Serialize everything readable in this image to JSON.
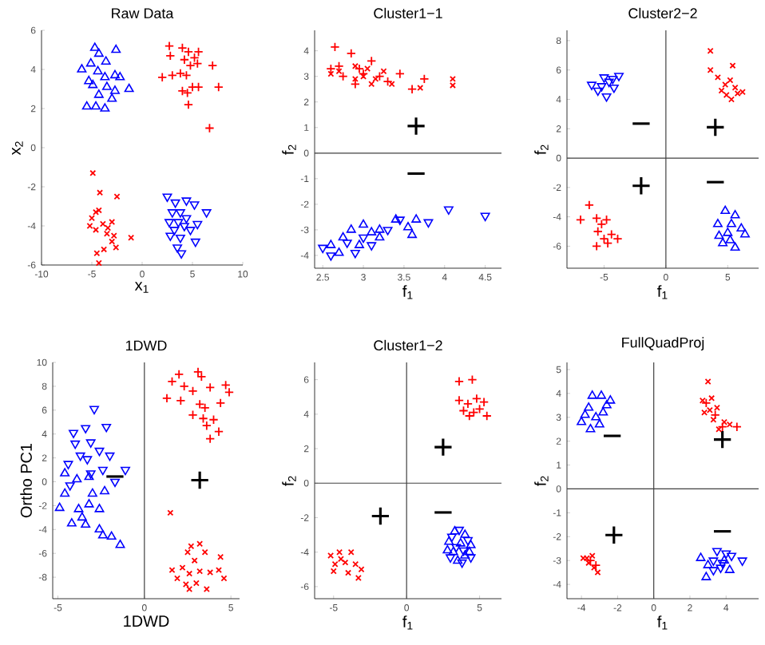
{
  "chart_data": [
    {
      "type": "scatter",
      "title": "Raw Data",
      "xlabel": "x$_{1}$",
      "ylabel": "x$_{2}$",
      "xlim": [
        -10,
        10
      ],
      "ylim": [
        -6,
        6
      ],
      "xticks": [
        -10,
        -5,
        0,
        5,
        10
      ],
      "yticks": [
        -6,
        -4,
        -2,
        0,
        2,
        4,
        6
      ],
      "series": [
        {
          "color": "#ff0000",
          "marker": "plus",
          "x": [
            2.7,
            2.8,
            4,
            4.6,
            5.2,
            5.6,
            4.8,
            5.5,
            7,
            2,
            3,
            3.8,
            4.4,
            5,
            5.6,
            4,
            4.5,
            7.6,
            4.6,
            6.7,
            4.2
          ],
          "values": [
            5.2,
            4.7,
            5.1,
            4.9,
            4.6,
            4.9,
            4.2,
            4.3,
            4.2,
            3.6,
            3.7,
            3.8,
            3.7,
            3.1,
            3.1,
            2.9,
            2.8,
            3.1,
            2.2,
            1,
            4.5
          ]
        },
        {
          "color": "#ff0000",
          "marker": "cross",
          "x": [
            -4.9,
            -4.2,
            -2.5,
            -4.6,
            -5,
            -4.3,
            -3.9,
            -3,
            -5.2,
            -4.6,
            -3.5,
            -2.8,
            -1.1,
            -3,
            -4.5,
            -3.8,
            -2.6,
            -4.3,
            -3.4
          ],
          "values": [
            -1.3,
            -2.3,
            -2.5,
            -3.3,
            -3.6,
            -3.2,
            -3.9,
            -3.8,
            -4,
            -4.2,
            -4.4,
            -4.5,
            -4.6,
            -4.8,
            -5.4,
            -5.2,
            -5.1,
            -5.9,
            -4.1
          ]
        },
        {
          "color": "#0000ff",
          "marker": "triangle",
          "x": [
            -4.7,
            -4.3,
            -2.6,
            -5.1,
            -3.6,
            -6,
            -4.4,
            -3.7,
            -2.7,
            -2.2,
            -4.9,
            -3.5,
            -1.3,
            -4.3,
            -3,
            -5.5,
            -4.6,
            -3.7,
            -2.7,
            -5.3
          ],
          "values": [
            5.1,
            4.8,
            5,
            4.3,
            4.4,
            4,
            3.9,
            3.6,
            3.7,
            3.6,
            3.2,
            3.1,
            3,
            2.7,
            2.5,
            2.1,
            2.1,
            2,
            2.9,
            3.4
          ]
        },
        {
          "color": "#0000ff",
          "marker": "triangle-down",
          "x": [
            2.5,
            3.3,
            4.4,
            5.2,
            3,
            3.8,
            6.4,
            2.7,
            3.6,
            4.4,
            5.5,
            3.2,
            4.8,
            2.8,
            3.8,
            5.3,
            3.5,
            3.9,
            4.2
          ],
          "values": [
            -2.5,
            -2.8,
            -2.7,
            -2.9,
            -3.3,
            -3.3,
            -3.3,
            -3.8,
            -3.8,
            -3.6,
            -3.9,
            -4.2,
            -4.2,
            -4.5,
            -4.6,
            -4.8,
            -5.1,
            -5.4,
            -4
          ]
        }
      ]
    },
    {
      "type": "scatter",
      "title": "Cluster1−1",
      "xlabel": "f$_{1}$",
      "ylabel": "f$_{2}$",
      "xlim": [
        2.4,
        4.7
      ],
      "ylim": [
        -4.5,
        4.8
      ],
      "xticks": [
        2.5,
        3,
        3.5,
        4,
        4.5
      ],
      "yticks": [
        -4,
        -3,
        -2,
        -1,
        0,
        1,
        2,
        3,
        4
      ],
      "ref_lines": [
        {
          "axis": "y",
          "value": 0
        }
      ],
      "annotations": [
        "+",
        "−"
      ],
      "series": [
        {
          "color": "#ff0000",
          "marker": "plus",
          "x": [
            2.65,
            2.85,
            2.6,
            2.7,
            3.1,
            2.75,
            3.0,
            3.2,
            3.45,
            3.75,
            2.9,
            3.3,
            3.6,
            2.95
          ],
          "values": [
            4.15,
            3.9,
            3.3,
            3.4,
            3.6,
            3.0,
            3.1,
            3.0,
            3.1,
            2.9,
            2.7,
            2.8,
            2.5,
            3.3
          ]
        },
        {
          "color": "#ff0000",
          "marker": "cross",
          "x": [
            2.6,
            2.7,
            2.9,
            3.0,
            3.05,
            3.15,
            3.25,
            3.35,
            3.7,
            4.1,
            4.1,
            2.9,
            3.1
          ],
          "values": [
            3.1,
            3.2,
            3.4,
            3.0,
            3.3,
            2.9,
            3.2,
            2.7,
            2.55,
            2.9,
            2.65,
            2.9,
            2.7
          ]
        },
        {
          "color": "#0000ff",
          "marker": "triangle",
          "x": [
            2.6,
            2.75,
            2.85,
            3.0,
            3.1,
            3.2,
            3.4,
            3.55,
            3.65,
            2.95,
            3.2,
            2.7,
            3.6
          ],
          "values": [
            -3.6,
            -3.3,
            -3.0,
            -2.8,
            -3.1,
            -3.0,
            -2.6,
            -2.9,
            -2.6,
            -3.6,
            -3.3,
            -3.9,
            -3.2
          ]
        },
        {
          "color": "#0000ff",
          "marker": "triangle-down",
          "x": [
            2.5,
            2.6,
            2.8,
            3.0,
            3.3,
            3.45,
            3.8,
            4.05,
            4.5,
            3.1,
            2.9
          ],
          "values": [
            -3.7,
            -4.0,
            -3.5,
            -3.3,
            -3.0,
            -2.6,
            -2.7,
            -2.2,
            -2.45,
            -3.6,
            -3.9
          ]
        }
      ]
    },
    {
      "type": "scatter",
      "title": "Cluster2−2",
      "xlabel": "f$_{1}$",
      "ylabel": "f$_{2}$",
      "xlim": [
        -8,
        7.5
      ],
      "ylim": [
        -7.5,
        8.7
      ],
      "xticks": [
        -5,
        0,
        5
      ],
      "yticks": [
        -6,
        -4,
        -2,
        0,
        2,
        4,
        6,
        8
      ],
      "ref_lines": [
        {
          "axis": "x",
          "value": 0
        },
        {
          "axis": "y",
          "value": 0
        }
      ],
      "annotations": [
        "−",
        "+",
        "+",
        "−"
      ],
      "series": [
        {
          "color": "#ff0000",
          "marker": "cross",
          "x": [
            3.6,
            5.4,
            3.6,
            4.2,
            4.8,
            5.2,
            5.6,
            4.5,
            5.8,
            5.3,
            6.2,
            4.9
          ],
          "values": [
            7.3,
            6.3,
            6.0,
            5.5,
            5.0,
            5.3,
            4.8,
            4.6,
            4.4,
            4.0,
            4.5,
            4.3
          ]
        },
        {
          "color": "#0000ff",
          "marker": "triangle-down",
          "x": [
            -6.0,
            -5.5,
            -5.0,
            -4.3,
            -4.8,
            -4.2,
            -3.8,
            -5.2,
            -4.6
          ],
          "values": [
            5.0,
            4.6,
            5.5,
            5.4,
            4.2,
            4.8,
            5.6,
            4.9,
            5.2
          ]
        },
        {
          "color": "#ff0000",
          "marker": "plus",
          "x": [
            -6.2,
            -6.9,
            -5.6,
            -5.2,
            -4.8,
            -5.5,
            -4.4,
            -5.0,
            -3.9,
            -5.6,
            -4.7
          ],
          "values": [
            -3.2,
            -4.2,
            -4.1,
            -4.5,
            -4.2,
            -5.0,
            -5.2,
            -5.5,
            -5.5,
            -6.0,
            -5.8
          ]
        },
        {
          "color": "#0000ff",
          "marker": "triangle",
          "x": [
            4.8,
            5.6,
            4.2,
            5.3,
            6.1,
            4.3,
            5.0,
            6.4,
            5.2,
            5.6,
            4.6
          ],
          "values": [
            -3.6,
            -3.9,
            -4.5,
            -4.5,
            -4.8,
            -5.3,
            -5.1,
            -5.2,
            -5.6,
            -6.1,
            -5.8
          ]
        }
      ]
    },
    {
      "type": "scatter",
      "title": "1DWD",
      "xlabel": "1DWD",
      "ylabel": "Ortho PC1",
      "xlim": [
        -5.3,
        5.5
      ],
      "ylim": [
        -9.8,
        10
      ],
      "xticks": [
        -5,
        0,
        5
      ],
      "yticks": [
        -8,
        -6,
        -4,
        -2,
        0,
        2,
        4,
        6,
        8,
        10
      ],
      "ref_lines": [
        {
          "axis": "x",
          "value": 0
        }
      ],
      "annotations": [
        "+",
        "−"
      ],
      "series": [
        {
          "color": "#ff0000",
          "marker": "plus",
          "x": [
            2.0,
            3.1,
            3.3,
            1.6,
            2.3,
            2.8,
            3.8,
            4.7,
            4.9,
            1.3,
            2.1,
            3.2,
            3.5,
            4.4,
            2.8,
            3.4,
            3.6,
            4.0,
            4.3,
            3.8
          ],
          "values": [
            9.0,
            9.2,
            8.8,
            8.4,
            8.0,
            7.6,
            7.9,
            8.1,
            7.5,
            7.0,
            6.8,
            6.5,
            6.2,
            6.6,
            5.6,
            5.3,
            4.7,
            5.2,
            4.2,
            3.6
          ]
        },
        {
          "color": "#ff0000",
          "marker": "cross",
          "x": [
            1.5,
            2.7,
            3.2,
            2.5,
            3.5,
            2.9,
            4.4,
            1.6,
            2.2,
            2.6,
            3.2,
            3.8,
            4.3,
            1.9,
            2.4,
            4.6,
            3.0,
            2.6,
            3.6
          ],
          "values": [
            -2.6,
            -5.4,
            -5.2,
            -5.9,
            -5.9,
            -6.6,
            -6.3,
            -7.4,
            -7.2,
            -7.7,
            -7.5,
            -7.6,
            -7.4,
            -8.1,
            -8.6,
            -8.1,
            -8.5,
            -9.0,
            -9.0
          ]
        },
        {
          "color": "#0000ff",
          "marker": "triangle-down",
          "x": [
            -2.9,
            -3.4,
            -4.1,
            -2.2,
            -4.0,
            -3.1,
            -2.6,
            -3.7,
            -2.0,
            -4.4,
            -3.3,
            -2.4,
            -1.1,
            -3.1,
            -1.7,
            -4.3
          ],
          "values": [
            6.1,
            4.5,
            4.1,
            4.6,
            3.2,
            3.3,
            2.6,
            2.2,
            2.2,
            1.5,
            1.9,
            1.0,
            1.0,
            0.7,
            0.0,
            -0.3
          ]
        },
        {
          "color": "#0000ff",
          "marker": "triangle",
          "x": [
            -4.6,
            -3.9,
            -3.2,
            -4.6,
            -3.0,
            -2.3,
            -4.9,
            -3.8,
            -3.2,
            -2.6,
            -4.2,
            -3.4,
            -2.6,
            -2.4,
            -1.9,
            -1.4,
            -3.6
          ],
          "values": [
            0.7,
            0.2,
            0.4,
            -1.0,
            -1.0,
            -0.8,
            -2.2,
            -2.3,
            -1.9,
            -2.3,
            -3.5,
            -3.6,
            -4.0,
            -4.5,
            -4.6,
            -5.3,
            -3.0
          ]
        }
      ]
    },
    {
      "type": "scatter",
      "title": "Cluster1−2",
      "xlabel": "f$_{1}$",
      "ylabel": "f$_{2}$",
      "xlim": [
        -6.3,
        6.5
      ],
      "ylim": [
        -6.7,
        7
      ],
      "xticks": [
        -5,
        0,
        5
      ],
      "yticks": [
        -6,
        -4,
        -2,
        0,
        2,
        4,
        6
      ],
      "ref_lines": [
        {
          "axis": "x",
          "value": 0
        },
        {
          "axis": "y",
          "value": 0
        }
      ],
      "annotations": [
        "+",
        "+",
        "−"
      ],
      "series": [
        {
          "color": "#ff0000",
          "marker": "plus",
          "x": [
            3.6,
            4.5,
            3.6,
            4.2,
            4.8,
            5.3,
            3.9,
            4.6,
            5.5,
            4.3,
            5.0
          ],
          "values": [
            5.9,
            6.0,
            4.8,
            4.6,
            4.9,
            4.7,
            4.2,
            4.1,
            3.9,
            3.9,
            4.3
          ]
        },
        {
          "color": "#ff0000",
          "marker": "cross",
          "x": [
            -5.2,
            -4.6,
            -3.8,
            -4.9,
            -4.2,
            -3.5,
            -5.0,
            -4.0,
            -3.1,
            -3.3,
            -4.5
          ],
          "values": [
            -4.2,
            -4.0,
            -4.0,
            -4.7,
            -4.6,
            -4.7,
            -5.1,
            -5.2,
            -5.0,
            -5.5,
            -4.4
          ]
        },
        {
          "color": "#0000ff",
          "marker": "triangle",
          "x": [
            3.3,
            4.0,
            2.9,
            3.7,
            4.4,
            3.2,
            4.0,
            3.5,
            2.8,
            4.3
          ],
          "values": [
            -2.8,
            -3.0,
            -3.4,
            -3.5,
            -3.6,
            -4.0,
            -4.2,
            -4.5,
            -3.9,
            -4.0
          ]
        },
        {
          "color": "#0000ff",
          "marker": "triangle-down",
          "x": [
            3.6,
            3.1,
            4.2,
            3.4,
            3.9,
            3.0,
            3.8,
            4.4
          ],
          "values": [
            -2.7,
            -3.1,
            -3.3,
            -3.7,
            -3.9,
            -4.3,
            -4.6,
            -4.3
          ]
        }
      ]
    },
    {
      "type": "scatter",
      "title": "FullQuadProj",
      "xlabel": "f$_{1}$",
      "ylabel": "f$_{2}$",
      "xlim": [
        -4.8,
        5.8
      ],
      "ylim": [
        -4.6,
        5.3
      ],
      "xticks": [
        -4,
        -2,
        0,
        2,
        4
      ],
      "yticks": [
        -4,
        -3,
        -2,
        -1,
        0,
        1,
        2,
        3,
        4,
        5
      ],
      "ref_lines": [
        {
          "axis": "x",
          "value": 0
        },
        {
          "axis": "y",
          "value": 0
        }
      ],
      "annotations": [
        "−",
        "+",
        "+",
        "−"
      ],
      "series": [
        {
          "color": "#0000ff",
          "marker": "triangle",
          "x": [
            -4.0,
            -3.6,
            -3.4,
            -2.9,
            -2.4,
            -3.2,
            -2.8,
            -3.5,
            -3.0,
            -2.6,
            -3.8,
            2.6,
            2.9,
            3.0,
            3.9,
            4.2
          ],
          "values": [
            2.8,
            3.4,
            3.9,
            3.9,
            3.7,
            3.0,
            3.2,
            2.5,
            2.7,
            3.5,
            3.1,
            -2.9,
            -3.7,
            -3.2,
            -3.0,
            -3.4
          ]
        },
        {
          "color": "#ff0000",
          "marker": "cross",
          "x": [
            3.0,
            2.7,
            3.2,
            3.5,
            2.8,
            3.3,
            3.9,
            3.6,
            4.2,
            3.1,
            -3.9,
            -3.4,
            -3.6,
            -3.3,
            -3.1,
            -3.7
          ],
          "values": [
            4.5,
            3.7,
            3.8,
            3.4,
            3.2,
            2.9,
            2.8,
            2.5,
            2.7,
            3.3,
            -2.9,
            -2.8,
            -3.1,
            -3.3,
            -3.5,
            -2.9
          ]
        },
        {
          "color": "#ff0000",
          "marker": "plus",
          "x": [
            4.6,
            2.9,
            3.4,
            3.8,
            -3.5,
            -3.2
          ],
          "values": [
            2.6,
            3.6,
            3.1,
            2.6,
            -3.0,
            -3.2
          ]
        },
        {
          "color": "#0000ff",
          "marker": "triangle-down",
          "x": [
            3.5,
            4.0,
            3.3,
            3.8,
            4.9,
            3.3,
            3.7,
            4.3
          ],
          "values": [
            -2.6,
            -2.7,
            -3.0,
            -3.1,
            -3.0,
            -3.4,
            -3.3,
            -2.8
          ]
        }
      ]
    }
  ]
}
